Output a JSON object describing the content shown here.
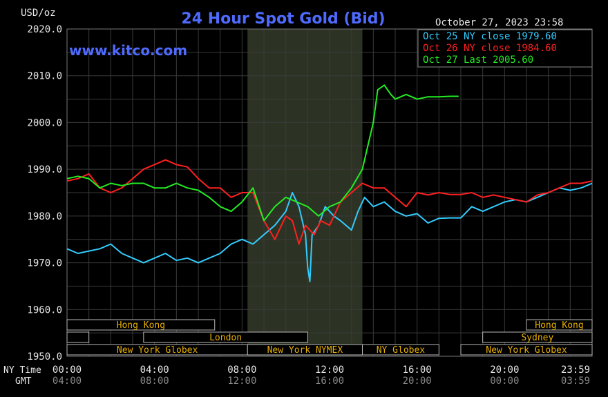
{
  "chart_data": {
    "type": "line",
    "title": "24 Hour Spot Gold (Bid)",
    "watermark": "www.kitco.com",
    "ylabel": "USD/oz",
    "date_label": "October 27, 2023 23:58",
    "ylim": [
      1950,
      2020
    ],
    "xlim": [
      0,
      24
    ],
    "y_ticks": [
      "2020.0",
      "2010.0",
      "2000.0",
      "1990.0",
      "1980.0",
      "1970.0",
      "1960.0",
      "1950.0"
    ],
    "x_ticks_ny": [
      "00:00",
      "04:00",
      "08:00",
      "12:00",
      "16:00",
      "20:00",
      "23:59"
    ],
    "x_ticks_gmt": [
      "04:00",
      "08:00",
      "12:00",
      "16:00",
      "20:00",
      "00:00",
      "03:59"
    ],
    "x_row_labels": {
      "ny": "NY Time",
      "gmt": "GMT"
    },
    "grid": true,
    "legend_position": "top-right",
    "shaded_region": [
      8.25,
      13.5
    ],
    "series": [
      {
        "name": "Oct 25 NY close 1979.60",
        "color": "#33ccff",
        "x": [
          0,
          0.5,
          1,
          1.5,
          2,
          2.5,
          3,
          3.5,
          4,
          4.5,
          5,
          5.5,
          6,
          6.5,
          7,
          7.5,
          8,
          8.5,
          9,
          9.5,
          10,
          10.3,
          10.6,
          10.9,
          11.0,
          11.1,
          11.2,
          11.5,
          11.8,
          12.2,
          12.5,
          13,
          13.3,
          13.6,
          14,
          14.5,
          15,
          15.5,
          16,
          16.5,
          17,
          17.5,
          18,
          18.5,
          19,
          19.5,
          20,
          20.5,
          21,
          21.5,
          22,
          22.5,
          23,
          23.5,
          24
        ],
        "values": [
          1973,
          1972,
          1972.5,
          1973,
          1974,
          1972,
          1971,
          1970,
          1971,
          1972,
          1970.5,
          1971,
          1970,
          1971,
          1972,
          1974,
          1975,
          1974,
          1976,
          1978,
          1981,
          1985,
          1982,
          1976,
          1969,
          1966,
          1976,
          1978,
          1982,
          1980,
          1979,
          1977,
          1981,
          1984,
          1982,
          1983,
          1981,
          1980,
          1980.5,
          1978.5,
          1979.5,
          1979.6,
          1979.6,
          1982,
          1981,
          1982,
          1983,
          1983.5,
          1983,
          1984,
          1985,
          1986,
          1985.5,
          1986,
          1987
        ]
      },
      {
        "name": "Oct 26 NY close 1984.60",
        "color": "#ff2020",
        "x": [
          0,
          0.5,
          1,
          1.5,
          2,
          2.5,
          3,
          3.5,
          4,
          4.5,
          5,
          5.5,
          6,
          6.5,
          7,
          7.5,
          8,
          8.5,
          9,
          9.5,
          10,
          10.3,
          10.6,
          10.9,
          11.3,
          11.6,
          12,
          12.5,
          13,
          13.5,
          14,
          14.5,
          15,
          15.5,
          16,
          16.5,
          17,
          17.5,
          18,
          18.5,
          19,
          19.5,
          20,
          20.5,
          21,
          21.5,
          22,
          22.5,
          23,
          23.5,
          24
        ],
        "values": [
          1987.5,
          1988,
          1989,
          1986,
          1985,
          1986,
          1988,
          1990,
          1991,
          1992,
          1991,
          1990.5,
          1988,
          1986,
          1986,
          1984,
          1985,
          1985,
          1979,
          1975,
          1980,
          1979,
          1974,
          1978,
          1976,
          1979,
          1978,
          1983,
          1985,
          1987,
          1986,
          1986,
          1984,
          1982,
          1985,
          1984.5,
          1985,
          1984.6,
          1984.6,
          1985,
          1984,
          1984.5,
          1984,
          1983.5,
          1983,
          1984.5,
          1985,
          1986,
          1987,
          1987,
          1987.5
        ]
      },
      {
        "name": "Oct 27 Last 2005.60",
        "color": "#22ee22",
        "x": [
          0,
          0.5,
          1,
          1.5,
          2,
          2.5,
          3,
          3.5,
          4,
          4.5,
          5,
          5.5,
          6,
          6.5,
          7,
          7.5,
          8,
          8.5,
          9,
          9.5,
          10,
          10.5,
          11,
          11.5,
          12,
          12.5,
          13,
          13.5,
          14,
          14.2,
          14.5,
          14.8,
          15,
          15.5,
          16,
          16.5,
          17,
          17.5,
          17.9
        ],
        "values": [
          1988,
          1988.5,
          1988,
          1986,
          1987,
          1986.5,
          1987,
          1987,
          1986,
          1986,
          1987,
          1986,
          1985.5,
          1984,
          1982,
          1981,
          1983,
          1986,
          1979,
          1982,
          1984,
          1983,
          1982,
          1980,
          1982,
          1983,
          1986,
          1990,
          2000,
          2007,
          2008,
          2006,
          2005,
          2006,
          2005,
          2005.5,
          2005.5,
          2005.6,
          2005.6
        ]
      }
    ],
    "sessions_top": [
      {
        "label": "Hong Kong",
        "from": 0,
        "to": 6.75
      },
      {
        "label": "Hong Kong",
        "from": 21,
        "to": 24
      }
    ],
    "sessions_mid": [
      {
        "label": "",
        "from": 0,
        "to": 1
      },
      {
        "label": "London",
        "from": 3.5,
        "to": 11
      },
      {
        "label": "Sydney",
        "from": 19,
        "to": 24
      }
    ],
    "sessions_bottom": [
      {
        "label": "New York Globex",
        "from": 0,
        "to": 8.25
      },
      {
        "label": "New York NYMEX",
        "from": 8.25,
        "to": 13.5
      },
      {
        "label": "NY Globex",
        "from": 13.5,
        "to": 17
      },
      {
        "label": "New York Globex",
        "from": 18,
        "to": 24
      }
    ]
  }
}
